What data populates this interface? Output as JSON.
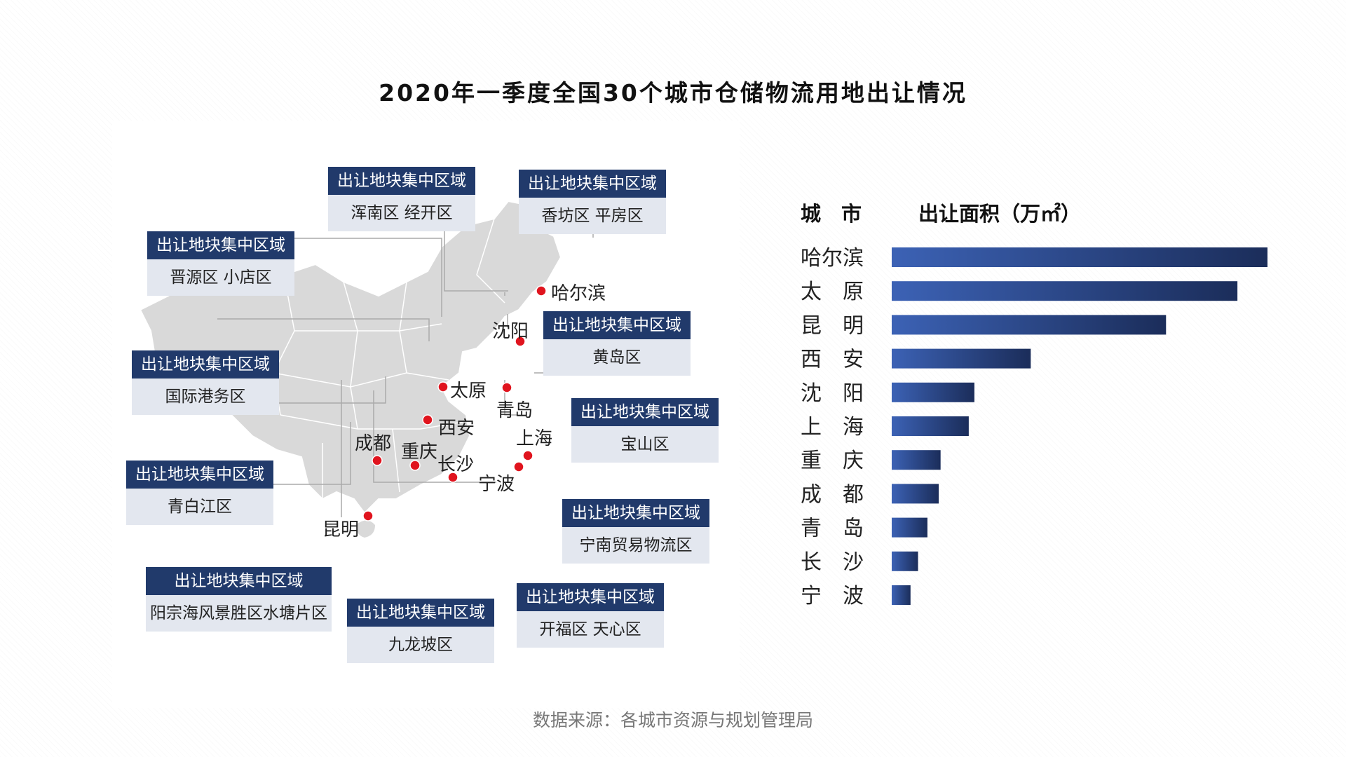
{
  "title": "2020年一季度全国30个城市仓储物流用地出让情况",
  "source": "数据来源：各城市资源与规划管理局",
  "map": {
    "callouts": [
      {
        "header": "出让地块集中区域",
        "body": "晋源区 小店区"
      },
      {
        "header": "出让地块集中区域",
        "body": "浑南区 经开区"
      },
      {
        "header": "出让地块集中区域",
        "body": "香坊区 平房区"
      },
      {
        "header": "出让地块集中区域",
        "body": "国际港务区"
      },
      {
        "header": "出让地块集中区域",
        "body": "黄岛区"
      },
      {
        "header": "出让地块集中区域",
        "body": "宝山区"
      },
      {
        "header": "出让地块集中区域",
        "body": "青白江区"
      },
      {
        "header": "出让地块集中区域",
        "body": "宁南贸易物流区"
      },
      {
        "header": "出让地块集中区域",
        "body": "阳宗海风景胜区水塘片区"
      },
      {
        "header": "出让地块集中区域",
        "body": "九龙坡区"
      },
      {
        "header": "出让地块集中区域",
        "body": "开福区 天心区"
      }
    ],
    "cities": [
      "哈尔滨",
      "沈阳",
      "太原",
      "青岛",
      "西安",
      "上海",
      "成都",
      "重庆",
      "长沙",
      "宁波",
      "昆明"
    ],
    "dot_color": "#e0141e"
  },
  "chart_data": {
    "type": "bar",
    "orientation": "horizontal",
    "header_city": "城　市",
    "header_value": "出让面积（万㎡）",
    "categories": [
      "哈尔滨",
      "太　原",
      "昆　明",
      "西　安",
      "沈　阳",
      "上　海",
      "重　庆",
      "成　都",
      "青　岛",
      "长　沙",
      "宁　波"
    ],
    "values": [
      100,
      92,
      73,
      37,
      22,
      20.5,
      13,
      12.5,
      9.5,
      7,
      5
    ],
    "bar_gradient": [
      "#3c62b5",
      "#1b2d5a"
    ]
  }
}
